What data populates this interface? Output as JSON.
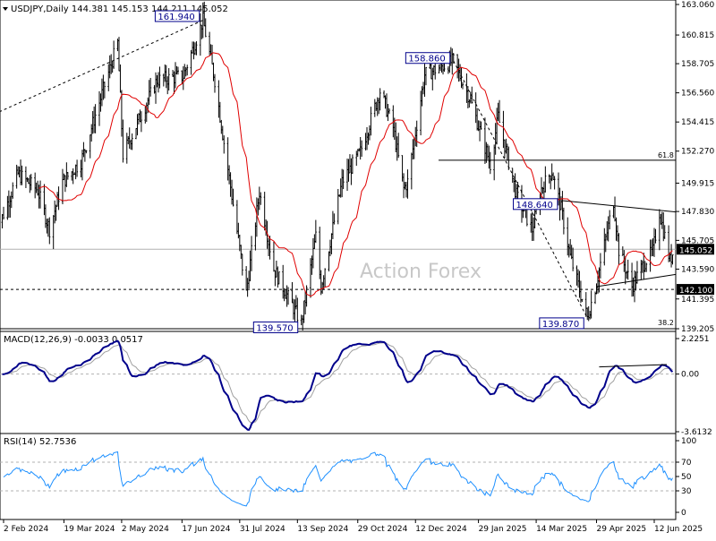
{
  "chart_data": [
    {
      "type": "candlestick",
      "panel": "price",
      "symbol_line": "USDJPY,Daily  144.381 145.153 144.211 145.052",
      "watermark": "Action Forex",
      "ylim": [
        139.205,
        163.06
      ],
      "y_ticks": [
        163.06,
        160.815,
        158.705,
        156.56,
        154.415,
        152.27,
        149.915,
        147.83,
        145.705,
        143.59,
        141.395,
        139.205
      ],
      "y_tick_labels": [
        "163.060",
        "160.815",
        "158.705",
        "156.560",
        "154.415",
        "152.270",
        "149.915",
        "147.830",
        "145.705",
        "143.590",
        "141.395",
        "139.205"
      ],
      "current_price": {
        "value": 145.052,
        "label": "145.052"
      },
      "support_line": {
        "value": 142.1,
        "label": "142.100"
      },
      "fib_levels": [
        {
          "label": "61.8",
          "value": 151.6
        },
        {
          "label": "38.2",
          "value": 139.5
        }
      ],
      "annotations": [
        {
          "label": "161.940",
          "value": 161.94,
          "date": "2024-07-03"
        },
        {
          "label": "158.860",
          "value": 158.86,
          "date": "2025-01-10"
        },
        {
          "label": "148.640",
          "value": 148.64,
          "date": "2025-04-02"
        },
        {
          "label": "139.570",
          "value": 139.57,
          "date": "2024-09-16"
        },
        {
          "label": "139.870",
          "value": 139.87,
          "date": "2025-04-22"
        }
      ],
      "x_tick_labels": [
        "2 Feb 2024",
        "19 Mar 2024",
        "2 May 2024",
        "17 Jun 2024",
        "31 Jul 2024",
        "13 Sep 2024",
        "29 Oct 2024",
        "12 Dec 2024",
        "29 Jan 2025",
        "14 Mar 2025",
        "29 Apr 2025",
        "12 Jun 2025"
      ],
      "colors": {
        "candles": "#000000",
        "ma": "#e00000",
        "trend": "#000000"
      }
    },
    {
      "type": "line",
      "panel": "macd",
      "title": "MACD(12,26,9) -0.0033 0.0517",
      "y_tick_labels": [
        "2.2251",
        "0.00",
        "-3.6132"
      ],
      "ylim": [
        -3.6132,
        2.2251
      ],
      "colors": {
        "macd": "#00008b",
        "signal": "#a0a0a0"
      }
    },
    {
      "type": "line",
      "panel": "rsi",
      "title": "RSI(14) 52.7536",
      "y_tick_labels": [
        "100",
        "70",
        "50",
        "30",
        "0"
      ],
      "ylim": [
        0,
        100
      ],
      "colors": {
        "rsi": "#1e90ff"
      }
    }
  ]
}
